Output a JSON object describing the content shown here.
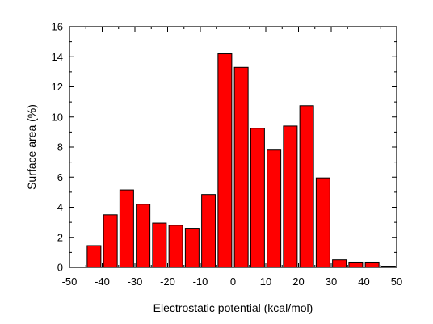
{
  "chart_data": {
    "type": "bar",
    "title": "",
    "xlabel": "Electrostatic potential (kcal/mol)",
    "ylabel": "Surface area (%)",
    "xlim": [
      -50,
      50
    ],
    "ylim": [
      0,
      16
    ],
    "x_ticks": [
      -50,
      -40,
      -30,
      -20,
      -10,
      0,
      10,
      20,
      30,
      40,
      50
    ],
    "y_ticks": [
      0,
      2,
      4,
      6,
      8,
      10,
      12,
      14,
      16
    ],
    "grid": false,
    "bar_color": "#ff0000",
    "bar_edge_color": "#000000",
    "bar_width": 4.2,
    "x": [
      -42.5,
      -37.5,
      -32.5,
      -27.5,
      -22.5,
      -17.5,
      -12.5,
      -7.5,
      -2.5,
      2.5,
      7.5,
      12.5,
      17.5,
      22.5,
      27.5,
      32.5,
      37.5,
      42.5,
      47.5
    ],
    "values": [
      1.45,
      3.5,
      5.15,
      4.2,
      2.95,
      2.8,
      2.6,
      4.85,
      14.2,
      13.3,
      9.25,
      7.8,
      9.4,
      10.75,
      5.95,
      0.5,
      0.35,
      0.35,
      0.08
    ]
  }
}
